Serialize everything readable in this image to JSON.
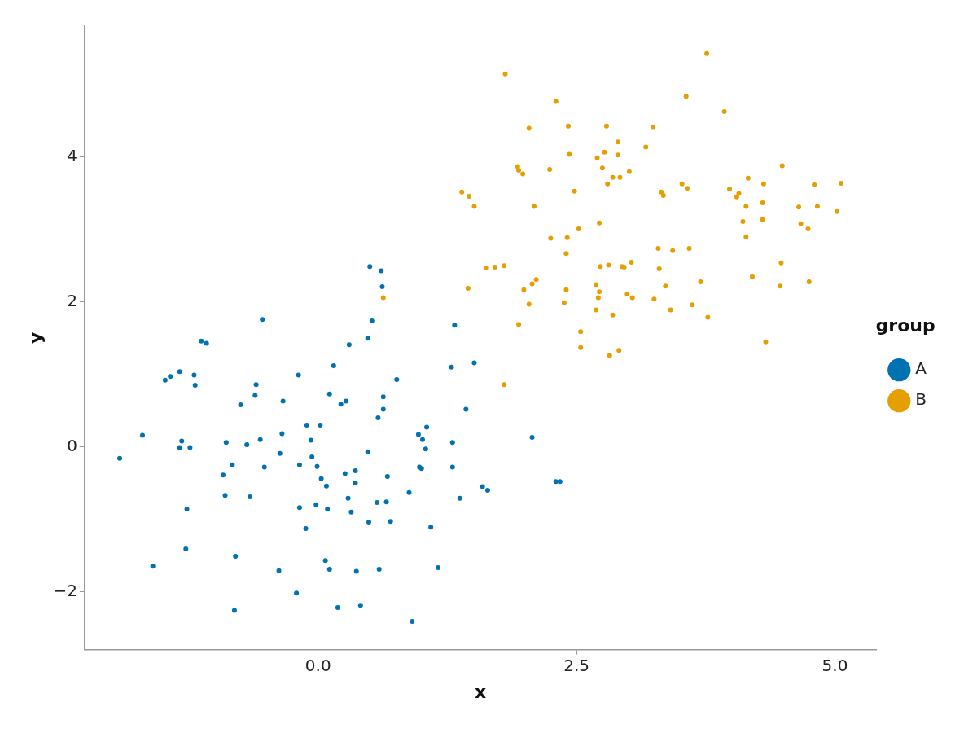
{
  "chart_data": {
    "type": "scatter",
    "xlabel": "x",
    "ylabel": "y",
    "legend_title": "group",
    "legend": "right",
    "grid": false,
    "marker": "circle",
    "xlim": [
      -2.26,
      5.4
    ],
    "ylim": [
      -2.8,
      5.81
    ],
    "xticks": [
      {
        "value": 0,
        "label": "0.0"
      },
      {
        "value": 2.5,
        "label": "2.5"
      },
      {
        "value": 5,
        "label": "5.0"
      }
    ],
    "yticks": [
      {
        "value": -2,
        "label": "−2"
      },
      0,
      2,
      4
    ],
    "series": [
      {
        "name": "A",
        "color": "#0072b2",
        "x": [
          -1.92,
          -1.7,
          -1.6,
          -1.48,
          -1.43,
          -1.34,
          -1.34,
          -1.32,
          -1.27,
          -1.28,
          -1.24,
          -1.2,
          -1.19,
          -1.13,
          -1.08,
          -0.92,
          -0.9,
          -0.89,
          -0.83,
          -0.8,
          -0.81,
          -0.75,
          -0.69,
          -0.66,
          -0.61,
          -0.6,
          -0.56,
          -0.54,
          -0.52,
          -0.37,
          -0.35,
          -0.34,
          -0.38,
          -0.21,
          -0.19,
          -0.18,
          -0.18,
          -0.12,
          -0.11,
          -0.07,
          -0.06,
          -0.02,
          -0.01,
          0.02,
          0.03,
          0.07,
          0.08,
          0.09,
          0.11,
          0.11,
          0.15,
          0.19,
          0.22,
          0.26,
          0.27,
          0.29,
          0.3,
          0.32,
          0.36,
          0.36,
          0.37,
          0.41,
          0.48,
          0.49,
          0.48,
          0.5,
          0.52,
          0.57,
          0.58,
          0.59,
          0.61,
          0.62,
          0.63,
          0.63,
          0.66,
          0.67,
          0.7,
          0.76,
          0.88,
          0.91,
          0.97,
          0.98,
          1.0,
          1.01,
          1.04,
          1.05,
          1.09,
          1.16,
          1.29,
          1.3,
          1.3,
          1.32,
          1.37,
          1.43,
          1.51,
          1.59,
          1.64,
          2.07,
          2.3,
          2.34
        ],
        "values": [
          -0.16,
          0.16,
          -1.65,
          0.92,
          0.97,
          1.04,
          -0.01,
          0.08,
          -0.86,
          -1.41,
          -0.01,
          0.99,
          0.85,
          1.46,
          1.43,
          -0.39,
          -0.67,
          0.06,
          -0.25,
          -1.51,
          -2.26,
          0.58,
          0.03,
          -0.69,
          0.71,
          0.86,
          0.1,
          1.76,
          -0.28,
          -0.09,
          0.18,
          0.63,
          -1.71,
          -2.02,
          0.99,
          -0.25,
          -0.84,
          -1.13,
          0.3,
          0.09,
          -0.14,
          -0.8,
          -0.27,
          0.3,
          -0.44,
          -1.57,
          -0.54,
          -0.86,
          -1.69,
          0.73,
          1.12,
          -2.22,
          0.59,
          -0.37,
          0.63,
          -0.71,
          1.41,
          -0.9,
          -0.5,
          -0.33,
          -1.72,
          -2.19,
          -0.07,
          -1.04,
          1.5,
          2.49,
          1.74,
          -0.77,
          0.4,
          -1.69,
          2.43,
          2.21,
          0.52,
          0.69,
          -0.76,
          -0.41,
          -1.03,
          0.93,
          -0.63,
          -2.41,
          0.17,
          -0.28,
          -0.3,
          0.1,
          -0.03,
          0.27,
          -1.11,
          -1.67,
          1.1,
          0.06,
          -0.28,
          1.68,
          -0.71,
          0.52,
          1.16,
          -0.55,
          -0.6,
          0.13,
          -0.48,
          -0.48
        ]
      },
      {
        "name": "B",
        "color": "#e69f00",
        "x": [
          0.63,
          1.39,
          1.46,
          1.51,
          1.45,
          1.63,
          1.71,
          1.8,
          1.81,
          1.8,
          1.93,
          1.94,
          1.98,
          1.94,
          1.99,
          2.04,
          2.04,
          2.07,
          2.09,
          2.11,
          2.24,
          2.25,
          2.3,
          2.38,
          2.4,
          2.41,
          2.4,
          2.42,
          2.43,
          2.48,
          2.52,
          2.54,
          2.54,
          2.69,
          2.69,
          2.7,
          2.72,
          2.72,
          2.71,
          2.73,
          2.75,
          2.77,
          2.79,
          2.8,
          2.81,
          2.82,
          2.85,
          2.85,
          2.9,
          2.9,
          2.92,
          2.91,
          2.94,
          2.96,
          3.01,
          2.99,
          3.03,
          3.04,
          3.17,
          3.24,
          3.25,
          3.29,
          3.3,
          3.32,
          3.34,
          3.36,
          3.41,
          3.43,
          3.52,
          3.56,
          3.57,
          3.59,
          3.62,
          3.7,
          3.76,
          3.77,
          3.93,
          3.98,
          4.05,
          4.07,
          4.11,
          4.14,
          4.16,
          4.14,
          4.2,
          4.3,
          4.31,
          4.3,
          4.33,
          4.48,
          4.47,
          4.49,
          4.65,
          4.67,
          4.74,
          4.75,
          4.8,
          4.83,
          5.02,
          5.06
        ],
        "values": [
          2.06,
          3.52,
          3.46,
          3.32,
          2.19,
          2.47,
          2.48,
          2.5,
          5.15,
          0.86,
          3.87,
          3.82,
          3.77,
          1.69,
          2.17,
          4.4,
          1.97,
          2.25,
          3.32,
          2.31,
          3.83,
          2.88,
          4.77,
          1.99,
          2.67,
          2.89,
          2.17,
          4.43,
          4.04,
          3.53,
          3.01,
          1.59,
          1.37,
          2.24,
          1.89,
          3.99,
          3.09,
          2.14,
          2.06,
          2.49,
          3.85,
          4.07,
          4.43,
          3.63,
          2.51,
          1.26,
          3.72,
          1.82,
          4.21,
          4.03,
          3.72,
          1.33,
          2.49,
          2.48,
          3.8,
          2.11,
          2.55,
          2.06,
          4.14,
          4.41,
          2.04,
          2.74,
          2.46,
          3.52,
          3.47,
          2.22,
          1.89,
          2.71,
          3.63,
          4.84,
          3.57,
          2.74,
          1.96,
          2.28,
          5.43,
          1.79,
          4.63,
          3.56,
          3.45,
          3.5,
          3.11,
          3.32,
          3.71,
          2.9,
          2.35,
          3.37,
          3.63,
          3.14,
          1.45,
          2.54,
          2.22,
          3.88,
          3.31,
          3.08,
          3.01,
          2.28,
          3.62,
          3.32,
          3.25,
          3.64
        ]
      }
    ]
  }
}
